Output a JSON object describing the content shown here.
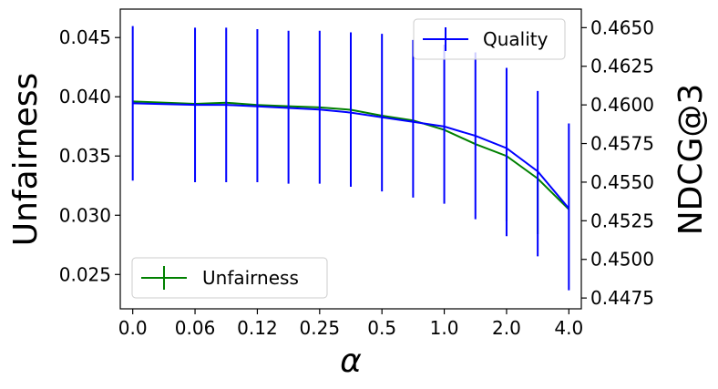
{
  "chart_data": {
    "type": "line",
    "xlabel": "α",
    "ylabel_left": "Unfairness",
    "ylabel_right": "NDCG@3",
    "categories": [
      "0.0",
      "",
      "0.06",
      "",
      "0.12",
      "",
      "0.25",
      "",
      "0.5",
      "",
      "1.0",
      "",
      "2.0",
      "",
      "4.0"
    ],
    "x_tick_labels": [
      "0.0",
      "0.06",
      "0.12",
      "0.25",
      "0.5",
      "1.0",
      "2.0",
      "4.0"
    ],
    "x_tick_positions": [
      0,
      2,
      4,
      6,
      8,
      10,
      12,
      14
    ],
    "xlim": [
      -0.4,
      14.4
    ],
    "left_axis": {
      "ylim": [
        0.0221,
        0.0474
      ],
      "ticks": [
        0.025,
        0.03,
        0.035,
        0.04,
        0.045
      ],
      "tick_labels": [
        "0.025",
        "0.030",
        "0.035",
        "0.040",
        "0.045"
      ]
    },
    "right_axis": {
      "ylim": [
        0.4468,
        0.4662
      ],
      "ticks": [
        0.4475,
        0.45,
        0.4525,
        0.455,
        0.4575,
        0.46,
        0.4625,
        0.465
      ],
      "tick_labels": [
        "0.4475",
        "0.4500",
        "0.4525",
        "0.4550",
        "0.4575",
        "0.4600",
        "0.4625",
        "0.4650"
      ]
    },
    "series": [
      {
        "name": "Unfairness",
        "axis": "left",
        "color": "#008000",
        "x": [
          0,
          2,
          3,
          4,
          5,
          6,
          7,
          8,
          9,
          10,
          11,
          12,
          13,
          14
        ],
        "values": [
          0.0396,
          0.0394,
          0.0395,
          0.0393,
          0.0392,
          0.0391,
          0.0389,
          0.0384,
          0.038,
          0.0372,
          0.036,
          0.035,
          0.0331,
          0.0305
        ],
        "err": [
          0.0,
          0.0,
          0.0,
          0.0,
          0.0,
          0.0,
          0.0,
          0.0,
          0.0,
          0.0,
          0.0,
          0.0,
          0.0,
          0.0
        ],
        "err_low_override": {
          "11": 0.0295,
          "12": 0.0284
        }
      },
      {
        "name": "Quality",
        "axis": "right",
        "color": "#0000ff",
        "x": [
          0,
          2,
          3,
          4,
          5,
          6,
          7,
          8,
          9,
          10,
          11,
          12,
          13,
          14
        ],
        "values": [
          0.4601,
          0.46,
          0.46,
          0.4599,
          0.4598,
          0.4597,
          0.4595,
          0.4592,
          0.4589,
          0.4586,
          0.458,
          0.4572,
          0.4557,
          0.4533
        ],
        "err_low": [
          0.4551,
          0.455,
          0.455,
          0.455,
          0.4549,
          0.4549,
          0.4547,
          0.4544,
          0.454,
          0.4536,
          0.4526,
          0.4515,
          0.4502,
          0.448
        ],
        "err_high": [
          0.4651,
          0.465,
          0.465,
          0.4649,
          0.4648,
          0.4648,
          0.4647,
          0.4646,
          0.4642,
          0.4639,
          0.4634,
          0.4624,
          0.4609,
          0.4588
        ]
      }
    ],
    "legends": [
      {
        "label": "Quality",
        "placement": "top-right"
      },
      {
        "label": "Unfairness",
        "placement": "bottom-left"
      }
    ],
    "grid": false
  }
}
